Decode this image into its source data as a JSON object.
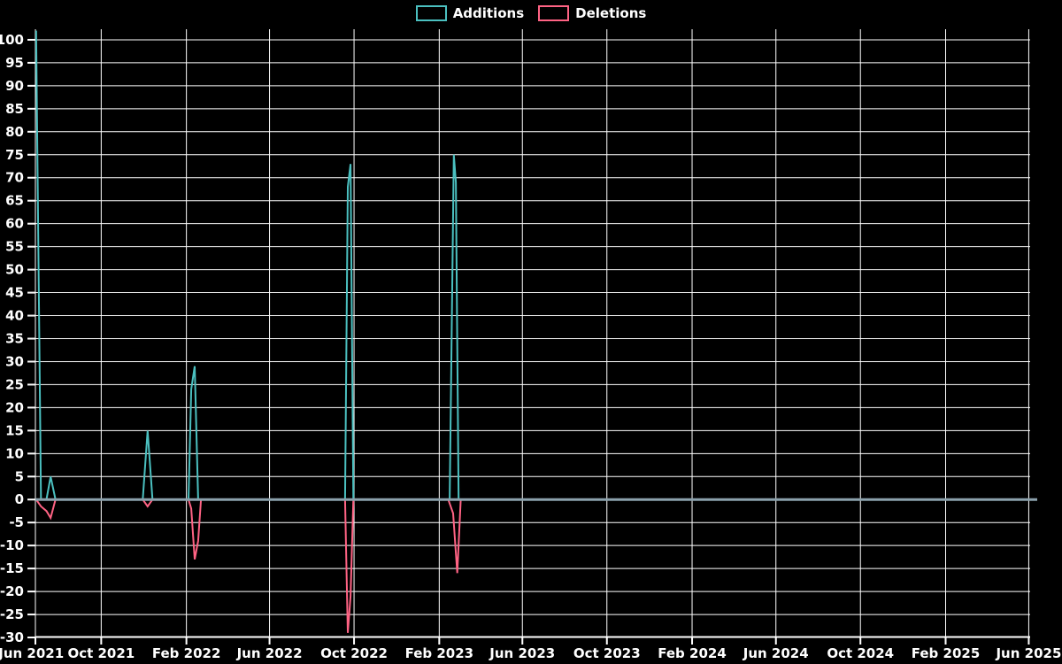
{
  "chart_data": {
    "type": "line",
    "title": "",
    "legend_position": "top",
    "background": "#000000",
    "grid_color": "#ffffff",
    "text_color": "#ffffff",
    "zero_line_color": "#8ba1ac",
    "x_axis": {
      "start_date": "2021-06-28",
      "end_date": "2025-06-03",
      "ticks": [
        {
          "label": "Jun 2021",
          "date": "2021-06-01"
        },
        {
          "label": "Oct 2021",
          "date": "2021-10-01"
        },
        {
          "label": "Feb 2022",
          "date": "2022-02-01"
        },
        {
          "label": "Jun 2022",
          "date": "2022-06-01"
        },
        {
          "label": "Oct 2022",
          "date": "2022-10-01"
        },
        {
          "label": "Feb 2023",
          "date": "2023-02-01"
        },
        {
          "label": "Jun 2023",
          "date": "2023-06-01"
        },
        {
          "label": "Oct 2023",
          "date": "2023-10-01"
        },
        {
          "label": "Feb 2024",
          "date": "2024-02-01"
        },
        {
          "label": "Jun 2024",
          "date": "2024-06-01"
        },
        {
          "label": "Oct 2024",
          "date": "2024-10-01"
        },
        {
          "label": "Feb 2025",
          "date": "2025-02-01"
        },
        {
          "label": "Jun 2025",
          "date": "2025-06-01"
        }
      ]
    },
    "y_axis": {
      "min": -29.8,
      "max": 102.3,
      "tick_step": 5,
      "ticks": [
        100,
        95,
        90,
        85,
        80,
        75,
        70,
        65,
        60,
        55,
        50,
        45,
        40,
        35,
        30,
        25,
        20,
        15,
        10,
        5,
        0,
        -5,
        -10,
        -15,
        -20,
        -25,
        -30
      ]
    },
    "series": [
      {
        "name": "Additions",
        "color": "#4bc0c0",
        "points": [
          [
            "2021-06-29",
            102
          ],
          [
            "2021-07-06",
            0
          ],
          [
            "2021-07-14",
            0
          ],
          [
            "2021-07-20",
            5
          ],
          [
            "2021-07-27",
            0
          ],
          [
            "2021-11-30",
            0
          ],
          [
            "2021-12-07",
            15
          ],
          [
            "2021-12-14",
            0
          ],
          [
            "2022-02-04",
            0
          ],
          [
            "2022-02-08",
            24
          ],
          [
            "2022-02-13",
            29
          ],
          [
            "2022-02-18",
            0
          ],
          [
            "2022-09-18",
            0
          ],
          [
            "2022-09-22",
            68
          ],
          [
            "2022-09-26",
            73
          ],
          [
            "2022-09-30",
            0
          ],
          [
            "2023-02-16",
            0
          ],
          [
            "2023-02-22",
            75
          ],
          [
            "2023-02-25",
            69
          ],
          [
            "2023-03-01",
            0
          ],
          [
            "2025-06-03",
            0
          ]
        ]
      },
      {
        "name": "Deletions",
        "color": "#ff6384",
        "points": [
          [
            "2021-06-29",
            0
          ],
          [
            "2021-07-06",
            -1.5
          ],
          [
            "2021-07-14",
            -2.5
          ],
          [
            "2021-07-20",
            -4
          ],
          [
            "2021-07-27",
            0
          ],
          [
            "2021-11-30",
            0
          ],
          [
            "2021-12-07",
            -1.5
          ],
          [
            "2021-12-14",
            0
          ],
          [
            "2022-02-04",
            0
          ],
          [
            "2022-02-08",
            -2
          ],
          [
            "2022-02-13",
            -13
          ],
          [
            "2022-02-18",
            -9
          ],
          [
            "2022-02-22",
            0
          ],
          [
            "2022-09-18",
            0
          ],
          [
            "2022-09-22",
            -29
          ],
          [
            "2022-09-26",
            -21
          ],
          [
            "2022-09-30",
            0
          ],
          [
            "2023-02-14",
            0
          ],
          [
            "2023-02-21",
            -3
          ],
          [
            "2023-02-27",
            -16
          ],
          [
            "2023-03-04",
            0
          ],
          [
            "2025-06-03",
            0
          ]
        ]
      }
    ]
  }
}
